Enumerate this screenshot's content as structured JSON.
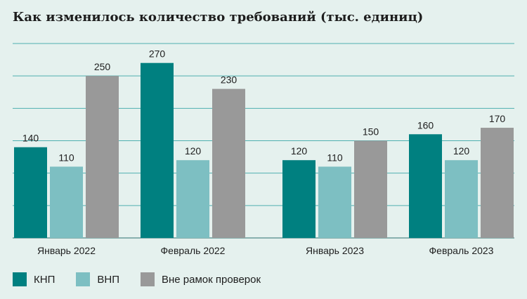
{
  "chart_data": {
    "type": "bar",
    "title": "Как изменилось количество требований (тыс. единиц)",
    "categories": [
      "Январь 2022",
      "Февраль 2022",
      "Январь 2023",
      "Февраль 2023"
    ],
    "series": [
      {
        "name": "КНП",
        "values": [
          140,
          270,
          120,
          160
        ],
        "color": "#008080"
      },
      {
        "name": "ВНП",
        "values": [
          110,
          120,
          110,
          120
        ],
        "color": "#7dbfc2"
      },
      {
        "name": "Вне рамок проверок",
        "values": [
          250,
          230,
          150,
          170
        ],
        "color": "#999999"
      }
    ],
    "ylim": [
      0,
      300
    ],
    "grid": true,
    "legend": "bottom-left"
  }
}
